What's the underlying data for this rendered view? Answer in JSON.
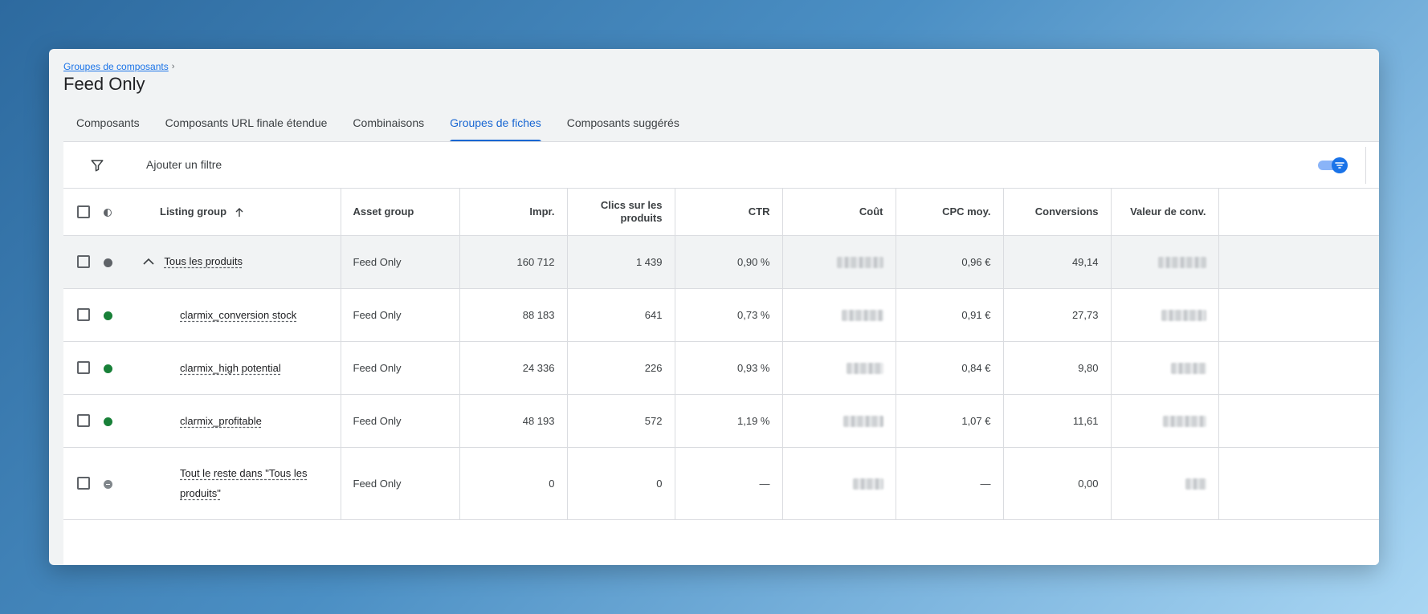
{
  "breadcrumb": {
    "parent": "Groupes de composants",
    "separator": "›"
  },
  "page_title": "Feed Only",
  "tabs": [
    {
      "label": "Composants",
      "active": false
    },
    {
      "label": "Composants URL finale étendue",
      "active": false
    },
    {
      "label": "Combinaisons",
      "active": false
    },
    {
      "label": "Groupes de fiches",
      "active": true
    },
    {
      "label": "Composants suggérés",
      "active": false
    }
  ],
  "filter": {
    "label": "Ajouter un filtre",
    "icon": "filter-icon",
    "toggle_on": true
  },
  "table": {
    "headers": {
      "listing_group": "Listing group",
      "asset_group": "Asset group",
      "impr": "Impr.",
      "clicks": "Clics sur les produits",
      "ctr": "CTR",
      "cost": "Coût",
      "cpc": "CPC moy.",
      "conversions": "Conversions",
      "conv_value": "Valeur de conv."
    },
    "sort": {
      "column": "Listing group",
      "direction": "ascending"
    },
    "rows": [
      {
        "status": "grey",
        "expandable": true,
        "name": "Tous les produits",
        "asset_group": "Feed Only",
        "impr": "160 712",
        "clicks": "1 439",
        "ctr": "0,90 %",
        "cost": "[blurred]",
        "cpc": "0,96 €",
        "conversions": "49,14",
        "conv_value": "[blurred]"
      },
      {
        "status": "green",
        "expandable": false,
        "name": "clarmix_conversion stock",
        "asset_group": "Feed Only",
        "impr": "88 183",
        "clicks": "641",
        "ctr": "0,73 %",
        "cost": "[blurred]",
        "cpc": "0,91 €",
        "conversions": "27,73",
        "conv_value": "[blurred]"
      },
      {
        "status": "green",
        "expandable": false,
        "name": "clarmix_high potential",
        "asset_group": "Feed Only",
        "impr": "24 336",
        "clicks": "226",
        "ctr": "0,93 %",
        "cost": "[blurred]",
        "cpc": "0,84 €",
        "conversions": "9,80",
        "conv_value": "[blurred]"
      },
      {
        "status": "green",
        "expandable": false,
        "name": "clarmix_profitable",
        "asset_group": "Feed Only",
        "impr": "48 193",
        "clicks": "572",
        "ctr": "1,19 %",
        "cost": "[blurred]",
        "cpc": "1,07 €",
        "conversions": "11,61",
        "conv_value": "[blurred]"
      },
      {
        "status": "excluded",
        "expandable": false,
        "name": "Tout le reste dans \"Tous les produits\"",
        "asset_group": "Feed Only",
        "impr": "0",
        "clicks": "0",
        "ctr": "—",
        "cost": "[blurred]",
        "cpc": "—",
        "conversions": "0,00",
        "conv_value": "[blurred]"
      }
    ]
  },
  "colors": {
    "accent": "#1a73e8",
    "active_tab": "#1967d2",
    "status_green": "#188038",
    "status_grey": "#5f6368"
  }
}
